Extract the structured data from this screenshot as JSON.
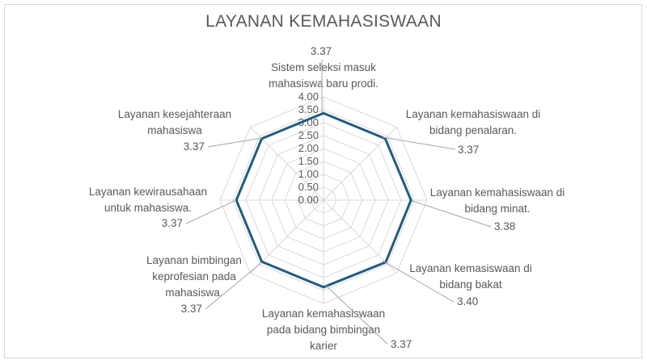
{
  "chart_data": {
    "type": "radar",
    "title": "LAYANAN KEMAHASISWAAN",
    "categories": [
      [
        "Sistem seleksi masuk",
        "mahasiswa baru prodi."
      ],
      [
        "Layanan kemahasiswaan di",
        "bidang penalaran."
      ],
      [
        "Layanan kemahasiswaan di",
        "bidang minat."
      ],
      [
        "Layanan kemasiswaan di",
        "bidang bakat"
      ],
      [
        "Layanan kemahasiswaan",
        "pada bidang bimbingan",
        "karier"
      ],
      [
        "Layanan bimbingan",
        "keprofesian pada",
        "mahasiswa."
      ],
      [
        "Layanan kewirausahaan",
        "untuk mahasiswa."
      ],
      [
        "Layanan kesejahteraan",
        "mahasiswa"
      ]
    ],
    "series": [
      {
        "values": [
          3.37,
          3.37,
          3.38,
          3.4,
          3.37,
          3.37,
          3.37,
          3.37
        ]
      }
    ],
    "data_labels": [
      "3.37",
      "3.37",
      "3.38",
      "3.40",
      "3.37",
      "3.37",
      "3.37",
      "3.37"
    ],
    "tick_labels": [
      "0.00",
      "0.50",
      "1.00",
      "1.50",
      "2.00",
      "2.50",
      "3.00",
      "3.50",
      "4.00"
    ],
    "rlim": [
      0,
      4
    ],
    "grid": true,
    "legend": "none",
    "colors": {
      "series": "#1f5c82",
      "grid": "#d9d9d9",
      "text": "#595959",
      "leader": "#a6a6a6"
    }
  }
}
